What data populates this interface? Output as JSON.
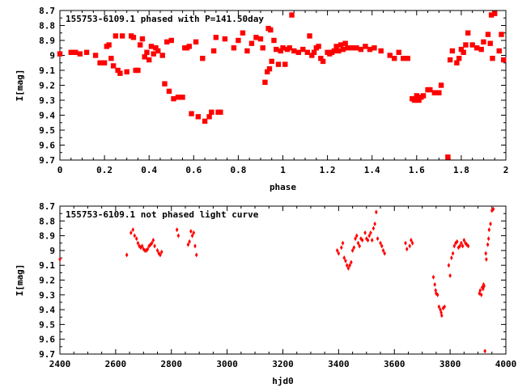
{
  "chart_data": [
    {
      "type": "scatter",
      "title": "155753-6109.1 phased with P=141.50day",
      "xlabel": "phase",
      "ylabel": "I[mag]",
      "xlim": [
        0,
        2
      ],
      "ylim": [
        8.7,
        9.7
      ],
      "y_inverted": true,
      "grid": false,
      "marker_color": "#ff0000",
      "xticks": [
        "0",
        "0.2",
        "0.4",
        "0.6",
        "0.8",
        "1",
        "1.2",
        "1.4",
        "1.6",
        "1.8",
        "2"
      ],
      "yticks": [
        "8.7",
        "8.8",
        "8.9",
        "9",
        "9.1",
        "9.2",
        "9.3",
        "9.4",
        "9.5",
        "9.6",
        "9.7"
      ],
      "points": [
        [
          0.0,
          8.99
        ],
        [
          0.05,
          8.98
        ],
        [
          0.07,
          8.98
        ],
        [
          0.09,
          8.99
        ],
        [
          0.12,
          8.98
        ],
        [
          0.16,
          9.0
        ],
        [
          0.18,
          9.05
        ],
        [
          0.2,
          9.05
        ],
        [
          0.21,
          8.94
        ],
        [
          0.22,
          8.93
        ],
        [
          0.23,
          9.02
        ],
        [
          0.24,
          9.07
        ],
        [
          0.25,
          8.87
        ],
        [
          0.26,
          9.1
        ],
        [
          0.27,
          9.12
        ],
        [
          0.28,
          8.87
        ],
        [
          0.3,
          9.11
        ],
        [
          0.32,
          8.87
        ],
        [
          0.33,
          8.88
        ],
        [
          0.34,
          9.1
        ],
        [
          0.35,
          9.1
        ],
        [
          0.36,
          8.93
        ],
        [
          0.37,
          8.89
        ],
        [
          0.38,
          9.01
        ],
        [
          0.39,
          8.98
        ],
        [
          0.4,
          9.03
        ],
        [
          0.41,
          8.94
        ],
        [
          0.42,
          8.99
        ],
        [
          0.43,
          8.95
        ],
        [
          0.44,
          8.97
        ],
        [
          0.46,
          9.0
        ],
        [
          0.47,
          9.19
        ],
        [
          0.48,
          8.91
        ],
        [
          0.49,
          9.24
        ],
        [
          0.5,
          8.9
        ],
        [
          0.51,
          9.29
        ],
        [
          0.53,
          9.28
        ],
        [
          0.55,
          9.28
        ],
        [
          0.56,
          8.95
        ],
        [
          0.57,
          8.95
        ],
        [
          0.58,
          8.94
        ],
        [
          0.59,
          9.39
        ],
        [
          0.61,
          8.91
        ],
        [
          0.62,
          9.41
        ],
        [
          0.64,
          9.02
        ],
        [
          0.65,
          9.44
        ],
        [
          0.67,
          9.41
        ],
        [
          0.68,
          9.38
        ],
        [
          0.69,
          8.97
        ],
        [
          0.7,
          8.88
        ],
        [
          0.71,
          9.38
        ],
        [
          0.72,
          9.38
        ],
        [
          0.74,
          8.89
        ],
        [
          0.78,
          8.95
        ],
        [
          0.8,
          8.9
        ],
        [
          0.82,
          8.85
        ],
        [
          0.84,
          8.97
        ],
        [
          0.86,
          8.92
        ],
        [
          0.88,
          8.88
        ],
        [
          0.9,
          8.89
        ],
        [
          0.91,
          8.95
        ],
        [
          0.92,
          9.18
        ],
        [
          0.93,
          9.11
        ],
        [
          0.935,
          8.82
        ],
        [
          0.94,
          9.09
        ],
        [
          0.945,
          8.83
        ],
        [
          0.95,
          9.04
        ],
        [
          0.96,
          8.9
        ],
        [
          0.97,
          8.96
        ],
        [
          0.98,
          9.06
        ],
        [
          0.99,
          8.97
        ],
        [
          1.0,
          8.95
        ],
        [
          1.01,
          9.06
        ],
        [
          1.02,
          8.96
        ],
        [
          1.03,
          8.95
        ],
        [
          1.04,
          8.73
        ],
        [
          1.05,
          8.97
        ],
        [
          1.07,
          8.98
        ],
        [
          1.09,
          8.96
        ],
        [
          1.11,
          8.98
        ],
        [
          1.12,
          8.87
        ],
        [
          1.13,
          9.0
        ],
        [
          1.14,
          8.98
        ],
        [
          1.15,
          8.95
        ],
        [
          1.16,
          8.94
        ],
        [
          1.17,
          9.02
        ],
        [
          1.18,
          9.04
        ],
        [
          1.2,
          8.98
        ],
        [
          1.21,
          8.99
        ],
        [
          1.22,
          8.98
        ],
        [
          1.23,
          8.97
        ],
        [
          1.24,
          8.94
        ],
        [
          1.25,
          8.97
        ],
        [
          1.26,
          8.93
        ],
        [
          1.27,
          8.96
        ],
        [
          1.28,
          8.92
        ],
        [
          1.29,
          8.95
        ],
        [
          1.31,
          8.95
        ],
        [
          1.33,
          8.95
        ],
        [
          1.35,
          8.96
        ],
        [
          1.37,
          8.94
        ],
        [
          1.39,
          8.96
        ],
        [
          1.41,
          8.95
        ],
        [
          1.44,
          8.97
        ],
        [
          1.48,
          9.0
        ],
        [
          1.5,
          9.02
        ],
        [
          1.52,
          8.98
        ],
        [
          1.54,
          9.02
        ],
        [
          1.56,
          9.02
        ],
        [
          1.58,
          9.29
        ],
        [
          1.59,
          9.3
        ],
        [
          1.6,
          9.27
        ],
        [
          1.61,
          9.3
        ],
        [
          1.62,
          9.28
        ],
        [
          1.63,
          9.27
        ],
        [
          1.65,
          9.23
        ],
        [
          1.66,
          9.23
        ],
        [
          1.68,
          9.25
        ],
        [
          1.69,
          9.25
        ],
        [
          1.7,
          9.25
        ],
        [
          1.71,
          9.2
        ],
        [
          1.74,
          9.68
        ],
        [
          1.75,
          9.03
        ],
        [
          1.76,
          8.97
        ],
        [
          1.78,
          9.05
        ],
        [
          1.79,
          9.02
        ],
        [
          1.8,
          8.96
        ],
        [
          1.81,
          8.98
        ],
        [
          1.82,
          8.93
        ],
        [
          1.83,
          8.85
        ],
        [
          1.85,
          8.93
        ],
        [
          1.87,
          8.95
        ],
        [
          1.89,
          8.96
        ],
        [
          1.9,
          8.91
        ],
        [
          1.92,
          8.86
        ],
        [
          1.93,
          8.92
        ],
        [
          1.935,
          8.73
        ],
        [
          1.94,
          9.02
        ],
        [
          1.95,
          8.72
        ],
        [
          1.97,
          8.97
        ],
        [
          1.98,
          8.86
        ],
        [
          1.99,
          9.03
        ]
      ]
    },
    {
      "type": "scatter",
      "title": "155753-6109.1 not phased light curve",
      "xlabel": "hjd0",
      "ylabel": "I[mag]",
      "xlim": [
        2400,
        4000
      ],
      "ylim": [
        8.7,
        9.7
      ],
      "y_inverted": true,
      "grid": false,
      "marker_color": "#ff0000",
      "xticks": [
        "2400",
        "2600",
        "2800",
        "3000",
        "3200",
        "3400",
        "3600",
        "3800",
        "4000"
      ],
      "yticks": [
        "8.7",
        "8.8",
        "8.9",
        "9",
        "9.1",
        "9.2",
        "9.3",
        "9.4",
        "9.5",
        "9.6",
        "9.7"
      ],
      "points": [
        [
          2400,
          9.06
        ],
        [
          2640,
          9.03
        ],
        [
          2655,
          8.88
        ],
        [
          2662,
          8.86
        ],
        [
          2668,
          8.9
        ],
        [
          2675,
          8.92
        ],
        [
          2680,
          8.95
        ],
        [
          2685,
          8.97
        ],
        [
          2690,
          8.98
        ],
        [
          2695,
          8.97
        ],
        [
          2700,
          8.99
        ],
        [
          2705,
          9.0
        ],
        [
          2710,
          9.0
        ],
        [
          2715,
          8.99
        ],
        [
          2720,
          8.97
        ],
        [
          2725,
          8.96
        ],
        [
          2730,
          8.95
        ],
        [
          2735,
          8.93
        ],
        [
          2740,
          8.97
        ],
        [
          2750,
          9.0
        ],
        [
          2755,
          9.02
        ],
        [
          2760,
          9.03
        ],
        [
          2765,
          9.01
        ],
        [
          2820,
          8.86
        ],
        [
          2825,
          8.9
        ],
        [
          2860,
          8.96
        ],
        [
          2865,
          8.94
        ],
        [
          2870,
          8.87
        ],
        [
          2875,
          8.9
        ],
        [
          2880,
          8.88
        ],
        [
          2885,
          8.97
        ],
        [
          2890,
          9.03
        ],
        [
          3395,
          9.0
        ],
        [
          3400,
          9.02
        ],
        [
          3410,
          8.98
        ],
        [
          3415,
          8.95
        ],
        [
          3420,
          9.05
        ],
        [
          3425,
          9.07
        ],
        [
          3430,
          9.1
        ],
        [
          3435,
          9.12
        ],
        [
          3440,
          9.1
        ],
        [
          3445,
          9.08
        ],
        [
          3450,
          9.0
        ],
        [
          3455,
          8.98
        ],
        [
          3460,
          8.92
        ],
        [
          3465,
          8.9
        ],
        [
          3470,
          8.95
        ],
        [
          3475,
          8.97
        ],
        [
          3480,
          8.92
        ],
        [
          3485,
          8.93
        ],
        [
          3495,
          8.88
        ],
        [
          3500,
          8.92
        ],
        [
          3505,
          8.93
        ],
        [
          3510,
          8.9
        ],
        [
          3515,
          8.88
        ],
        [
          3520,
          8.93
        ],
        [
          3525,
          8.85
        ],
        [
          3530,
          8.82
        ],
        [
          3535,
          8.74
        ],
        [
          3540,
          8.92
        ],
        [
          3550,
          8.95
        ],
        [
          3555,
          8.97
        ],
        [
          3560,
          9.0
        ],
        [
          3565,
          9.02
        ],
        [
          3640,
          8.95
        ],
        [
          3645,
          8.99
        ],
        [
          3655,
          8.97
        ],
        [
          3660,
          8.93
        ],
        [
          3665,
          8.95
        ],
        [
          3740,
          9.18
        ],
        [
          3745,
          9.23
        ],
        [
          3748,
          9.27
        ],
        [
          3750,
          9.29
        ],
        [
          3755,
          9.3
        ],
        [
          3760,
          9.38
        ],
        [
          3765,
          9.4
        ],
        [
          3768,
          9.42
        ],
        [
          3770,
          9.44
        ],
        [
          3775,
          9.39
        ],
        [
          3780,
          9.38
        ],
        [
          3795,
          9.1
        ],
        [
          3800,
          9.17
        ],
        [
          3805,
          9.05
        ],
        [
          3810,
          9.02
        ],
        [
          3815,
          8.97
        ],
        [
          3820,
          8.95
        ],
        [
          3825,
          8.94
        ],
        [
          3830,
          8.98
        ],
        [
          3835,
          8.97
        ],
        [
          3840,
          8.95
        ],
        [
          3845,
          8.97
        ],
        [
          3850,
          8.93
        ],
        [
          3855,
          8.95
        ],
        [
          3860,
          8.96
        ],
        [
          3865,
          8.97
        ],
        [
          3905,
          9.29
        ],
        [
          3908,
          9.27
        ],
        [
          3912,
          9.3
        ],
        [
          3915,
          9.25
        ],
        [
          3918,
          9.26
        ],
        [
          3920,
          9.23
        ],
        [
          3922,
          9.24
        ],
        [
          3925,
          9.68
        ],
        [
          3928,
          9.02
        ],
        [
          3930,
          9.06
        ],
        [
          3935,
          8.96
        ],
        [
          3938,
          8.92
        ],
        [
          3940,
          8.86
        ],
        [
          3945,
          8.82
        ],
        [
          3950,
          8.73
        ],
        [
          3955,
          8.72
        ]
      ]
    }
  ]
}
